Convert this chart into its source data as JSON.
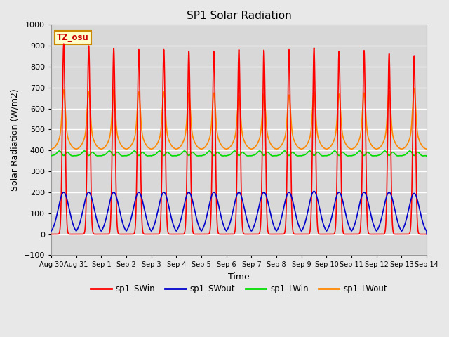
{
  "title": "SP1 Solar Radiation",
  "xlabel": "Time",
  "ylabel": "Solar Radiation (W/m2)",
  "ylim": [
    -100,
    1000
  ],
  "background_color": "#d8d8d8",
  "grid_color": "#ffffff",
  "tz_label": "TZ_osu",
  "legend_entries": [
    "sp1_SWin",
    "sp1_SWout",
    "sp1_LWin",
    "sp1_LWout"
  ],
  "legend_colors": [
    "#ff0000",
    "#0000cc",
    "#00dd00",
    "#ff8800"
  ],
  "xtick_labels": [
    "Aug 30",
    "Aug 31",
    "Sep 1",
    "Sep 2",
    "Sep 3",
    "Sep 4",
    "Sep 5",
    "Sep 6",
    "Sep 7",
    "Sep 8",
    "Sep 9",
    "Sep 10",
    "Sep 11",
    "Sep 12",
    "Sep 13",
    "Sep 14"
  ],
  "sw_in_peaks": [
    910,
    900,
    888,
    882,
    882,
    875,
    875,
    882,
    880,
    882,
    890,
    875,
    878,
    862,
    850
  ],
  "sw_out_peaks": [
    200,
    200,
    200,
    200,
    200,
    200,
    200,
    200,
    200,
    200,
    205,
    200,
    200,
    200,
    195
  ],
  "lw_out_peaks": [
    610,
    600,
    610,
    600,
    600,
    595,
    595,
    580,
    590,
    585,
    600,
    590,
    595,
    605,
    615
  ],
  "lw_in_base": 370,
  "lw_out_night": 405,
  "num_days": 15,
  "samples_per_day": 480,
  "figsize": [
    6.4,
    4.8
  ],
  "dpi": 100
}
